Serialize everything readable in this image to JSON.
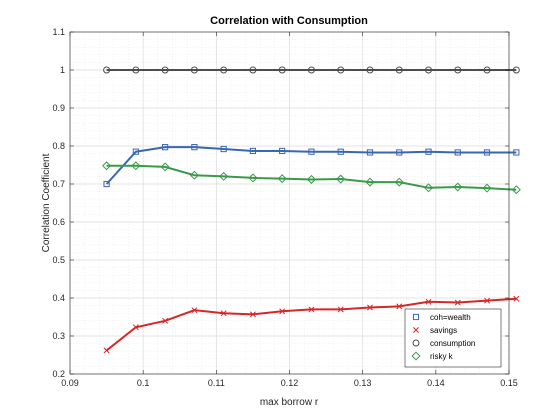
{
  "chart_data": {
    "type": "line",
    "title": "Correlation with Consumption",
    "xlabel": "max borrow r",
    "ylabel": "Correlation Coefficient",
    "xlim": [
      0.09,
      0.15
    ],
    "ylim": [
      0.2,
      1.1
    ],
    "xticks": [
      "0.09",
      "0.1",
      "0.11",
      "0.12",
      "0.13",
      "0.14",
      "0.15"
    ],
    "yticks": [
      "0.2",
      "0.3",
      "0.4",
      "0.5",
      "0.6",
      "0.7",
      "0.8",
      "0.9",
      "1",
      "1.1"
    ],
    "x": [
      0.095,
      0.099,
      0.103,
      0.107,
      0.111,
      0.115,
      0.119,
      0.123,
      0.127,
      0.131,
      0.135,
      0.139,
      0.143,
      0.147,
      0.151
    ],
    "grid": true,
    "legend_position": "bottom-right",
    "series": [
      {
        "name": "coh=wealth",
        "marker": "square",
        "color": "#3a66b4",
        "values": [
          0.7,
          0.785,
          0.797,
          0.797,
          0.792,
          0.787,
          0.787,
          0.785,
          0.785,
          0.783,
          0.783,
          0.785,
          0.783,
          0.783,
          0.783
        ]
      },
      {
        "name": "savings",
        "marker": "x",
        "color": "#d62728",
        "values": [
          0.262,
          0.323,
          0.34,
          0.368,
          0.36,
          0.357,
          0.365,
          0.37,
          0.37,
          0.375,
          0.378,
          0.39,
          0.388,
          0.393,
          0.398
        ]
      },
      {
        "name": "consumption",
        "marker": "circle",
        "color": "#4d4d4d",
        "values": [
          1,
          1,
          1,
          1,
          1,
          1,
          1,
          1,
          1,
          1,
          1,
          1,
          1,
          1,
          1
        ]
      },
      {
        "name": "risky k",
        "marker": "diamond",
        "color": "#3a9a4a",
        "values": [
          0.748,
          0.748,
          0.745,
          0.723,
          0.72,
          0.716,
          0.714,
          0.712,
          0.713,
          0.705,
          0.705,
          0.69,
          0.692,
          0.689,
          0.685
        ]
      }
    ]
  }
}
